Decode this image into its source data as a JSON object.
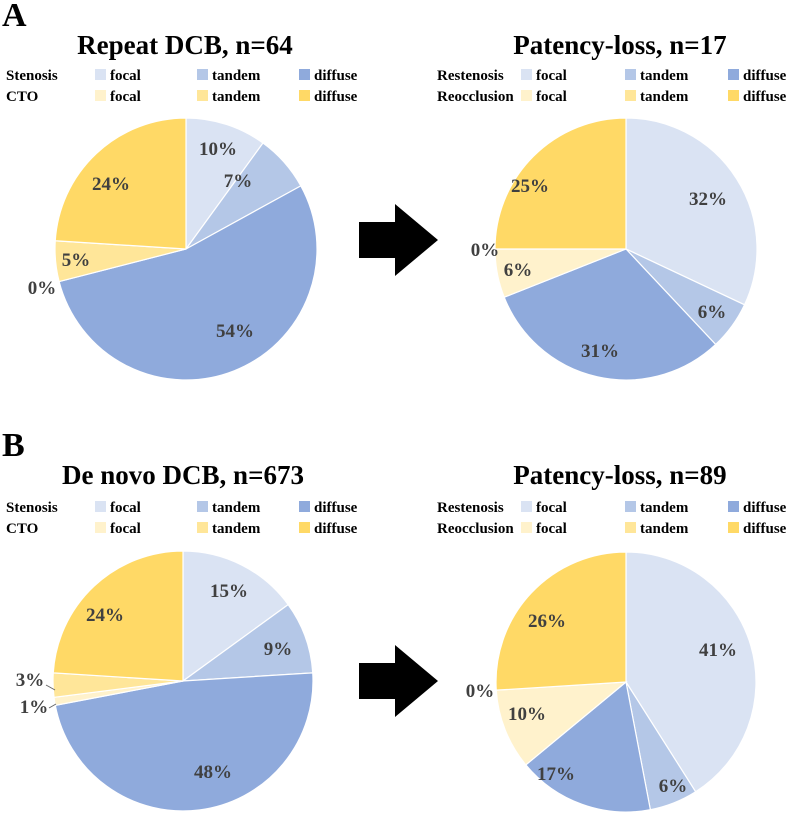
{
  "panels": [
    {
      "letter": "A"
    },
    {
      "letter": "B"
    }
  ],
  "legend_rows": {
    "left": [
      "Stenosis",
      "CTO"
    ],
    "right": [
      "Restenosis",
      "Reocclusion"
    ]
  },
  "legend_entries": [
    "focal",
    "tandem",
    "diffuse"
  ],
  "colors": {
    "stenosis_focal": "#dae3f3",
    "stenosis_tandem": "#b4c7e7",
    "stenosis_diffuse": "#8faadc",
    "cto_focal": "#fff2cc",
    "cto_tandem": "#ffe699",
    "cto_diffuse": "#ffd966",
    "arrow": "#000000"
  },
  "chart_data": [
    {
      "type": "pie",
      "title": "Repeat DCB, n=64",
      "panel": "A",
      "legend_rows": [
        "Stenosis",
        "CTO"
      ],
      "slices": [
        {
          "group": "Stenosis",
          "name": "focal",
          "value": 10,
          "label": "10%"
        },
        {
          "group": "Stenosis",
          "name": "tandem",
          "value": 7,
          "label": "7%"
        },
        {
          "group": "Stenosis",
          "name": "diffuse",
          "value": 54,
          "label": "54%"
        },
        {
          "group": "CTO",
          "name": "focal",
          "value": 0,
          "label": "0%"
        },
        {
          "group": "CTO",
          "name": "tandem",
          "value": 5,
          "label": "5%"
        },
        {
          "group": "CTO",
          "name": "diffuse",
          "value": 24,
          "label": "24%"
        }
      ]
    },
    {
      "type": "pie",
      "title": "Patency-loss, n=17",
      "panel": "A",
      "legend_rows": [
        "Restenosis",
        "Reocclusion"
      ],
      "slices": [
        {
          "group": "Restenosis",
          "name": "focal",
          "value": 32,
          "label": "32%"
        },
        {
          "group": "Restenosis",
          "name": "tandem",
          "value": 6,
          "label": "6%"
        },
        {
          "group": "Restenosis",
          "name": "diffuse",
          "value": 31,
          "label": "31%"
        },
        {
          "group": "Reocclusion",
          "name": "focal",
          "value": 6,
          "label": "6%"
        },
        {
          "group": "Reocclusion",
          "name": "tandem",
          "value": 0,
          "label": "0%"
        },
        {
          "group": "Reocclusion",
          "name": "diffuse",
          "value": 25,
          "label": "25%"
        }
      ]
    },
    {
      "type": "pie",
      "title": "De novo DCB, n=673",
      "panel": "B",
      "legend_rows": [
        "Stenosis",
        "CTO"
      ],
      "slices": [
        {
          "group": "Stenosis",
          "name": "focal",
          "value": 15,
          "label": "15%"
        },
        {
          "group": "Stenosis",
          "name": "tandem",
          "value": 9,
          "label": "9%"
        },
        {
          "group": "Stenosis",
          "name": "diffuse",
          "value": 48,
          "label": "48%"
        },
        {
          "group": "CTO",
          "name": "focal",
          "value": 1,
          "label": "1%"
        },
        {
          "group": "CTO",
          "name": "tandem",
          "value": 3,
          "label": "3%"
        },
        {
          "group": "CTO",
          "name": "diffuse",
          "value": 24,
          "label": "24%"
        }
      ]
    },
    {
      "type": "pie",
      "title": "Patency-loss, n=89",
      "panel": "B",
      "legend_rows": [
        "Restenosis",
        "Reocclusion"
      ],
      "slices": [
        {
          "group": "Restenosis",
          "name": "focal",
          "value": 41,
          "label": "41%"
        },
        {
          "group": "Restenosis",
          "name": "tandem",
          "value": 6,
          "label": "6%"
        },
        {
          "group": "Restenosis",
          "name": "diffuse",
          "value": 17,
          "label": "17%"
        },
        {
          "group": "Reocclusion",
          "name": "focal",
          "value": 10,
          "label": "10%"
        },
        {
          "group": "Reocclusion",
          "name": "tandem",
          "value": 0,
          "label": "0%"
        },
        {
          "group": "Reocclusion",
          "name": "diffuse",
          "value": 26,
          "label": "26%"
        }
      ]
    }
  ]
}
